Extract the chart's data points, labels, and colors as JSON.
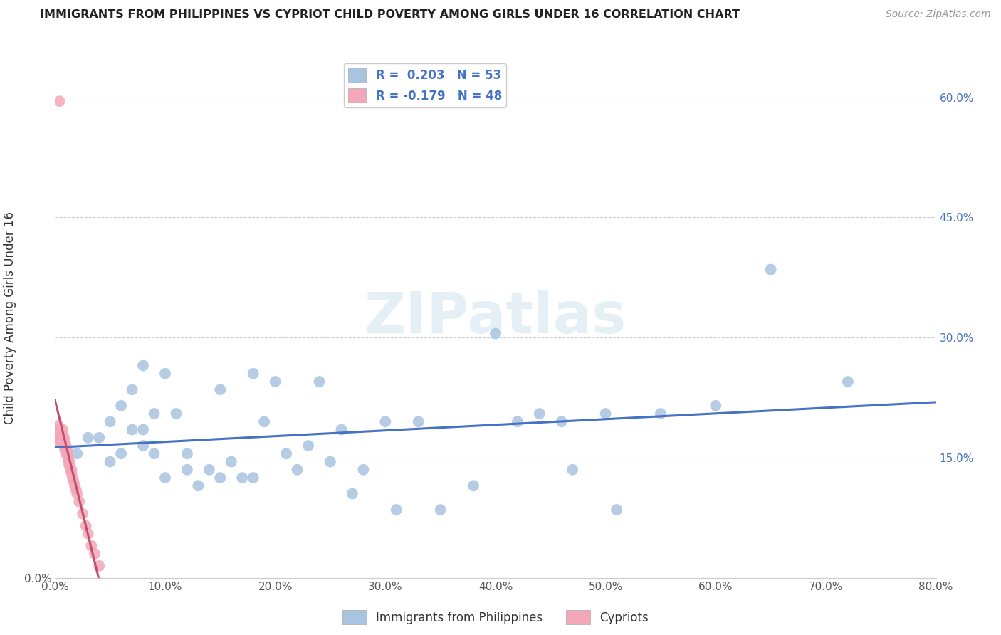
{
  "title": "IMMIGRANTS FROM PHILIPPINES VS CYPRIOT CHILD POVERTY AMONG GIRLS UNDER 16 CORRELATION CHART",
  "source": "Source: ZipAtlas.com",
  "ylabel": "Child Poverty Among Girls Under 16",
  "xlim": [
    0,
    0.8
  ],
  "ylim": [
    0,
    0.65
  ],
  "xticks": [
    0.0,
    0.1,
    0.2,
    0.3,
    0.4,
    0.5,
    0.6,
    0.7,
    0.8
  ],
  "xticklabels": [
    "0.0%",
    "10.0%",
    "20.0%",
    "30.0%",
    "40.0%",
    "50.0%",
    "60.0%",
    "70.0%",
    "80.0%"
  ],
  "yticks": [
    0.0,
    0.15,
    0.3,
    0.45,
    0.6
  ],
  "right_yticks": [
    0.15,
    0.3,
    0.45,
    0.6
  ],
  "right_yticklabels": [
    "15.0%",
    "30.0%",
    "45.0%",
    "60.0%"
  ],
  "blue_color": "#a8c4e0",
  "pink_color": "#f4a7b9",
  "blue_line_color": "#4472C4",
  "pink_line_color": "#C0506A",
  "r_blue": 0.203,
  "n_blue": 53,
  "r_pink": -0.179,
  "n_pink": 48,
  "watermark": "ZIPatlas",
  "blue_scatter_x": [
    0.02,
    0.03,
    0.04,
    0.05,
    0.05,
    0.06,
    0.06,
    0.07,
    0.07,
    0.08,
    0.08,
    0.08,
    0.09,
    0.09,
    0.1,
    0.1,
    0.11,
    0.12,
    0.12,
    0.13,
    0.14,
    0.15,
    0.15,
    0.16,
    0.17,
    0.18,
    0.18,
    0.19,
    0.2,
    0.21,
    0.22,
    0.23,
    0.24,
    0.25,
    0.26,
    0.27,
    0.28,
    0.3,
    0.31,
    0.33,
    0.35,
    0.38,
    0.4,
    0.42,
    0.44,
    0.46,
    0.47,
    0.5,
    0.51,
    0.55,
    0.6,
    0.65,
    0.72
  ],
  "blue_scatter_y": [
    0.155,
    0.175,
    0.175,
    0.195,
    0.145,
    0.155,
    0.215,
    0.235,
    0.185,
    0.165,
    0.185,
    0.265,
    0.155,
    0.205,
    0.125,
    0.255,
    0.205,
    0.155,
    0.135,
    0.115,
    0.135,
    0.125,
    0.235,
    0.145,
    0.125,
    0.255,
    0.125,
    0.195,
    0.245,
    0.155,
    0.135,
    0.165,
    0.245,
    0.145,
    0.185,
    0.105,
    0.135,
    0.195,
    0.085,
    0.195,
    0.085,
    0.115,
    0.305,
    0.195,
    0.205,
    0.195,
    0.135,
    0.205,
    0.085,
    0.205,
    0.215,
    0.385,
    0.245
  ],
  "pink_scatter_x": [
    0.002,
    0.002,
    0.002,
    0.003,
    0.003,
    0.003,
    0.004,
    0.004,
    0.005,
    0.005,
    0.005,
    0.006,
    0.006,
    0.007,
    0.007,
    0.007,
    0.007,
    0.008,
    0.008,
    0.008,
    0.008,
    0.009,
    0.009,
    0.009,
    0.01,
    0.01,
    0.01,
    0.011,
    0.011,
    0.012,
    0.012,
    0.013,
    0.013,
    0.014,
    0.015,
    0.015,
    0.016,
    0.017,
    0.018,
    0.019,
    0.02,
    0.022,
    0.025,
    0.028,
    0.03,
    0.033,
    0.036,
    0.04
  ],
  "pink_scatter_y": [
    0.17,
    0.175,
    0.185,
    0.175,
    0.18,
    0.19,
    0.185,
    0.595,
    0.17,
    0.175,
    0.18,
    0.17,
    0.175,
    0.17,
    0.175,
    0.18,
    0.185,
    0.175,
    0.17,
    0.175,
    0.165,
    0.165,
    0.17,
    0.16,
    0.165,
    0.16,
    0.155,
    0.155,
    0.16,
    0.15,
    0.145,
    0.145,
    0.14,
    0.135,
    0.13,
    0.135,
    0.125,
    0.12,
    0.115,
    0.11,
    0.105,
    0.095,
    0.08,
    0.065,
    0.055,
    0.04,
    0.03,
    0.015
  ]
}
